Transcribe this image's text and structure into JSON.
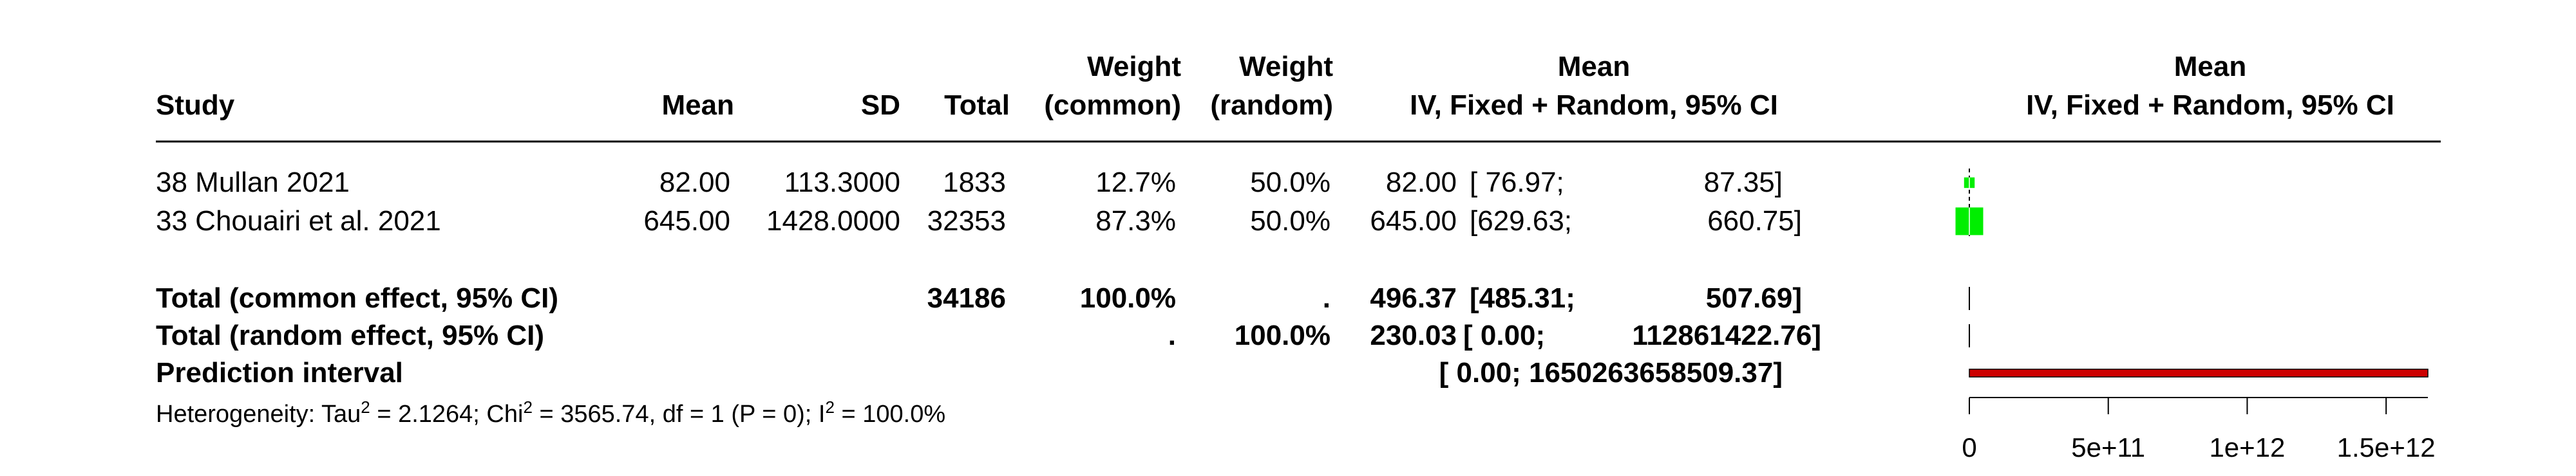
{
  "headers": {
    "study": "Study",
    "mean": "Mean",
    "sd": "SD",
    "total": "Total",
    "weight_common_1": "Weight",
    "weight_common_2": "(common)",
    "weight_random_1": "Weight",
    "weight_random_2": "(random)",
    "ci_top": "Mean",
    "ci_bottom": "IV, Fixed + Random, 95% CI",
    "plot_top": "Mean",
    "plot_bottom": "IV, Fixed + Random, 95% CI"
  },
  "studies": [
    {
      "name": "38 Mullan 2021",
      "mean": "82.00",
      "sd": "113.3000",
      "total": "1833",
      "w_common": "12.7%",
      "w_random": "50.0%",
      "ci_est": "82.00",
      "ci_low": "[ 76.97;",
      "ci_high": "87.35]"
    },
    {
      "name": "33 Chouairi et al. 2021",
      "mean": "645.00",
      "sd": "1428.0000",
      "total": "32353",
      "w_common": "87.3%",
      "w_random": "50.0%",
      "ci_est": "645.00",
      "ci_low": "[629.63;",
      "ci_high": "660.75]"
    }
  ],
  "pooled": {
    "common": {
      "label": "Total (common effect, 95% CI)",
      "total": "34186",
      "w_common": "100.0%",
      "w_random": ".",
      "ci_est": "496.37",
      "ci_low": "[485.31;",
      "ci_high": "507.69]"
    },
    "random": {
      "label": "Total (random effect, 95% CI)",
      "w_common": ".",
      "w_random": "100.0%",
      "ci_est": "230.03",
      "ci_low": "[ 0.00;",
      "ci_high": "112861422.76]"
    },
    "prediction": {
      "label": "Prediction interval",
      "ci_text": "[ 0.00; 1650263658509.37]"
    }
  },
  "heterogeneity": {
    "prefix": "Heterogeneity: Tau",
    "sup1": "2",
    "mid1": " = 2.1264; Chi",
    "sup2": "2",
    "mid2": " = 3565.74, df = 1 (P = 0); I",
    "sup3": "2",
    "suffix": " = 100.0%"
  },
  "chart_data": {
    "type": "forest",
    "x_axis": {
      "range": [
        0,
        1650263658509.37
      ],
      "ticks": [
        0,
        500000000000,
        1000000000000,
        1500000000000
      ],
      "tick_labels": [
        "0",
        "5e+11",
        "1e+12",
        "1.5e+12"
      ]
    },
    "studies": [
      {
        "name": "38 Mullan 2021",
        "estimate": 82.0,
        "ci": [
          76.97,
          87.35
        ],
        "weight_common": 12.7
      },
      {
        "name": "33 Chouairi et al. 2021",
        "estimate": 645.0,
        "ci": [
          629.63,
          660.75
        ],
        "weight_common": 87.3
      }
    ],
    "common_effect": {
      "estimate": 496.37,
      "ci": [
        485.31,
        507.69
      ]
    },
    "random_effect": {
      "estimate": 230.03,
      "ci": [
        0.0,
        112861422.76
      ]
    },
    "prediction_interval": [
      0.0,
      1650263658509.37
    ],
    "colors": {
      "study_box": "#00ee00",
      "prediction_bar": "#cc0000"
    }
  }
}
